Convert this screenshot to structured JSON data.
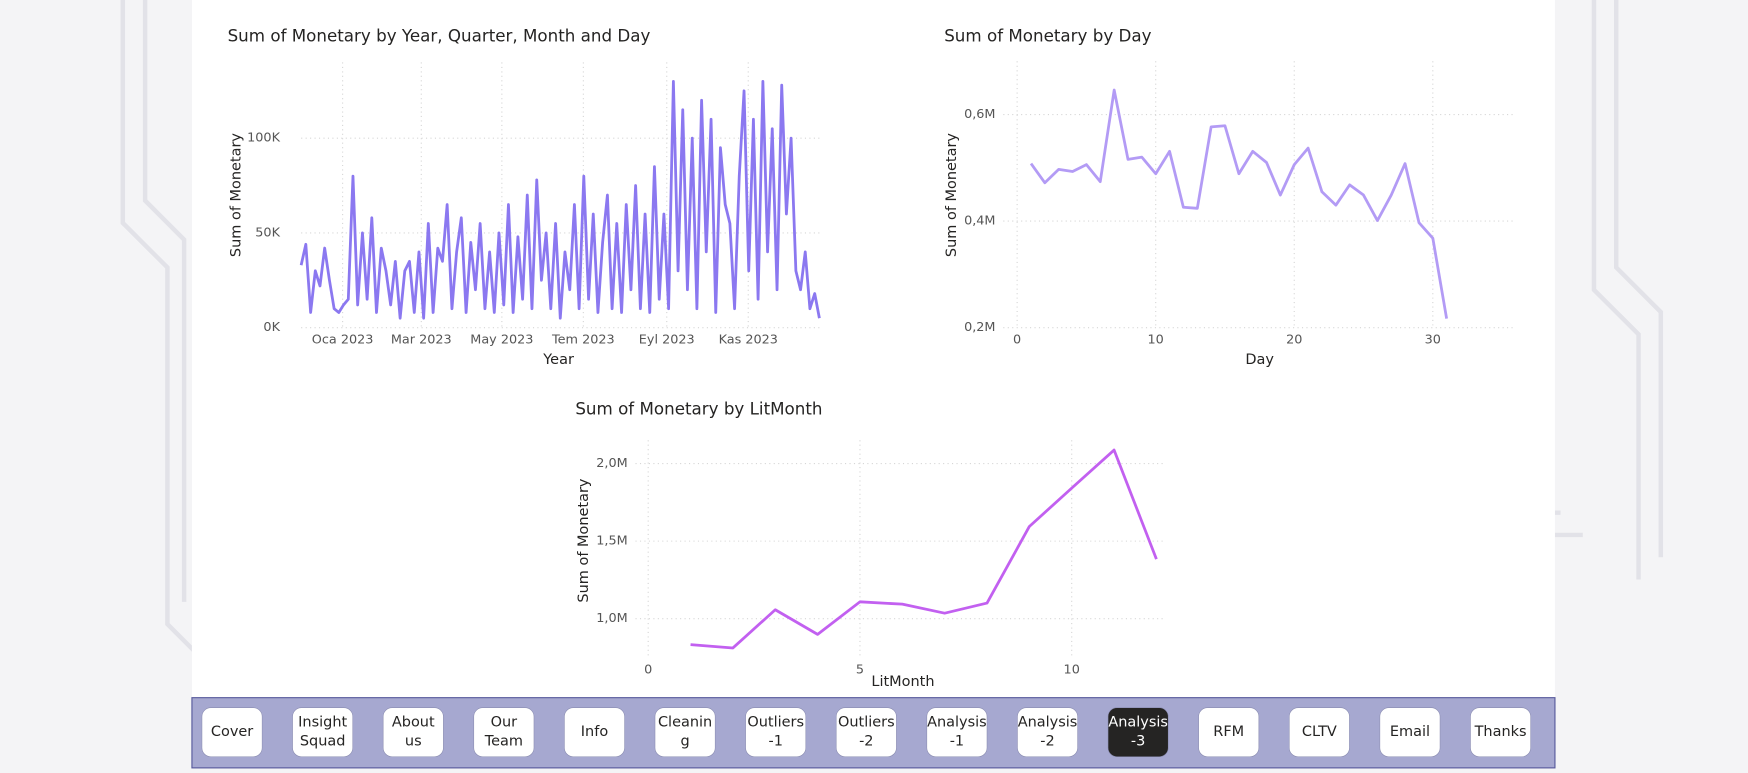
{
  "chart_data": [
    {
      "type": "line",
      "title": "Sum of Monetary by Year, Quarter, Month and Day",
      "x_label": "Year",
      "y_label": "Sum of Monetary",
      "color": "#8b78f0",
      "grid": true,
      "values": [
        33000,
        44000,
        8000,
        30000,
        22000,
        42000,
        25000,
        10000,
        8000,
        12000,
        15000,
        80000,
        12000,
        50000,
        15000,
        58000,
        8000,
        42000,
        30000,
        12000,
        35000,
        5000,
        30000,
        35000,
        8000,
        40000,
        5000,
        55000,
        8000,
        42000,
        35000,
        65000,
        10000,
        40000,
        58000,
        8000,
        45000,
        20000,
        55000,
        10000,
        40000,
        8000,
        50000,
        12000,
        65000,
        8000,
        48000,
        15000,
        70000,
        10000,
        78000,
        25000,
        50000,
        10000,
        55000,
        5000,
        40000,
        20000,
        65000,
        10000,
        80000,
        15000,
        60000,
        8000,
        45000,
        70000,
        10000,
        55000,
        8000,
        65000,
        20000,
        75000,
        10000,
        60000,
        8000,
        85000,
        15000,
        60000,
        10000,
        130000,
        30000,
        115000,
        20000,
        100000,
        10000,
        120000,
        40000,
        110000,
        8000,
        95000,
        65000,
        55000,
        10000,
        80000,
        125000,
        30000,
        110000,
        15000,
        130000,
        40000,
        105000,
        20000,
        128000,
        60000,
        100000,
        30000,
        20000,
        40000,
        10000,
        18000,
        5000
      ],
      "xlim": [
        0,
        110
      ],
      "xticks": [
        {
          "value": 8.8,
          "label": "Oca 2023"
        },
        {
          "value": 25.5,
          "label": "Mar 2023"
        },
        {
          "value": 42.6,
          "label": "May 2023"
        },
        {
          "value": 59.9,
          "label": "Tem 2023"
        },
        {
          "value": 77.6,
          "label": "Eyl 2023"
        },
        {
          "value": 94.9,
          "label": "Kas 2023"
        }
      ],
      "ylim": [
        0,
        140000
      ],
      "yticks": [
        {
          "value": 0,
          "label": "0K"
        },
        {
          "value": 50000,
          "label": "50K"
        },
        {
          "value": 100000,
          "label": "100K"
        }
      ]
    },
    {
      "type": "line",
      "title": "Sum of Monetary by Day",
      "x_label": "Day",
      "y_label": "Sum of Monetary",
      "color": "#b39bf5",
      "grid": true,
      "x": [
        1,
        2,
        3,
        4,
        5,
        6,
        7,
        8,
        9,
        10,
        11,
        12,
        13,
        14,
        15,
        16,
        17,
        18,
        19,
        20,
        21,
        22,
        23,
        24,
        25,
        26,
        27,
        28,
        29,
        30,
        31
      ],
      "values": [
        508000,
        472000,
        497000,
        493000,
        506000,
        474000,
        646000,
        516000,
        520000,
        489000,
        531000,
        426000,
        424000,
        577000,
        579000,
        489000,
        531000,
        510000,
        449000,
        506000,
        537000,
        455000,
        430000,
        468000,
        449000,
        401000,
        449000,
        508000,
        397000,
        368000,
        217000
      ],
      "xlim": [
        -1,
        36
      ],
      "xticks": [
        0,
        10,
        20,
        30
      ],
      "ylim": [
        200000,
        700000
      ],
      "yticks": [
        {
          "value": 200000,
          "label": "0,2M"
        },
        {
          "value": 400000,
          "label": "0,4M"
        },
        {
          "value": 600000,
          "label": "0,6M"
        }
      ]
    },
    {
      "type": "line",
      "title": "Sum of Monetary by LitMonth",
      "x_label": "LitMonth",
      "y_label": "Sum of Monetary",
      "color": "#c260f0",
      "grid": true,
      "x": [
        1,
        2,
        3,
        4,
        5,
        6,
        7,
        8,
        9,
        10,
        11,
        12
      ],
      "values": [
        833000,
        812000,
        1058000,
        899000,
        1109000,
        1094000,
        1036000,
        1101000,
        1594000,
        1841000,
        2087000,
        1384000
      ],
      "xlim": [
        -0.3,
        12.2
      ],
      "xticks": [
        0,
        5,
        10
      ],
      "ylim": [
        750000,
        2150000
      ],
      "yticks": [
        {
          "value": 1000000,
          "label": "1,0M"
        },
        {
          "value": 1500000,
          "label": "1,5M"
        },
        {
          "value": 2000000,
          "label": "2,0M"
        }
      ]
    }
  ],
  "navigation": {
    "buttons": [
      [
        "Cover"
      ],
      [
        "Insight",
        "Squad"
      ],
      [
        "About",
        "us"
      ],
      [
        "Our",
        "Team"
      ],
      [
        "Info"
      ],
      [
        "Cleanin",
        "g"
      ],
      [
        "Outliers",
        "-1"
      ],
      [
        "Outliers",
        "-2"
      ],
      [
        "Analysis",
        "-1"
      ],
      [
        "Analysis",
        "-2"
      ],
      [
        "Analysis",
        "-3"
      ],
      [
        "RFM"
      ],
      [
        "CLTV"
      ],
      [
        "Email"
      ],
      [
        "Thanks"
      ]
    ],
    "active": 10
  }
}
